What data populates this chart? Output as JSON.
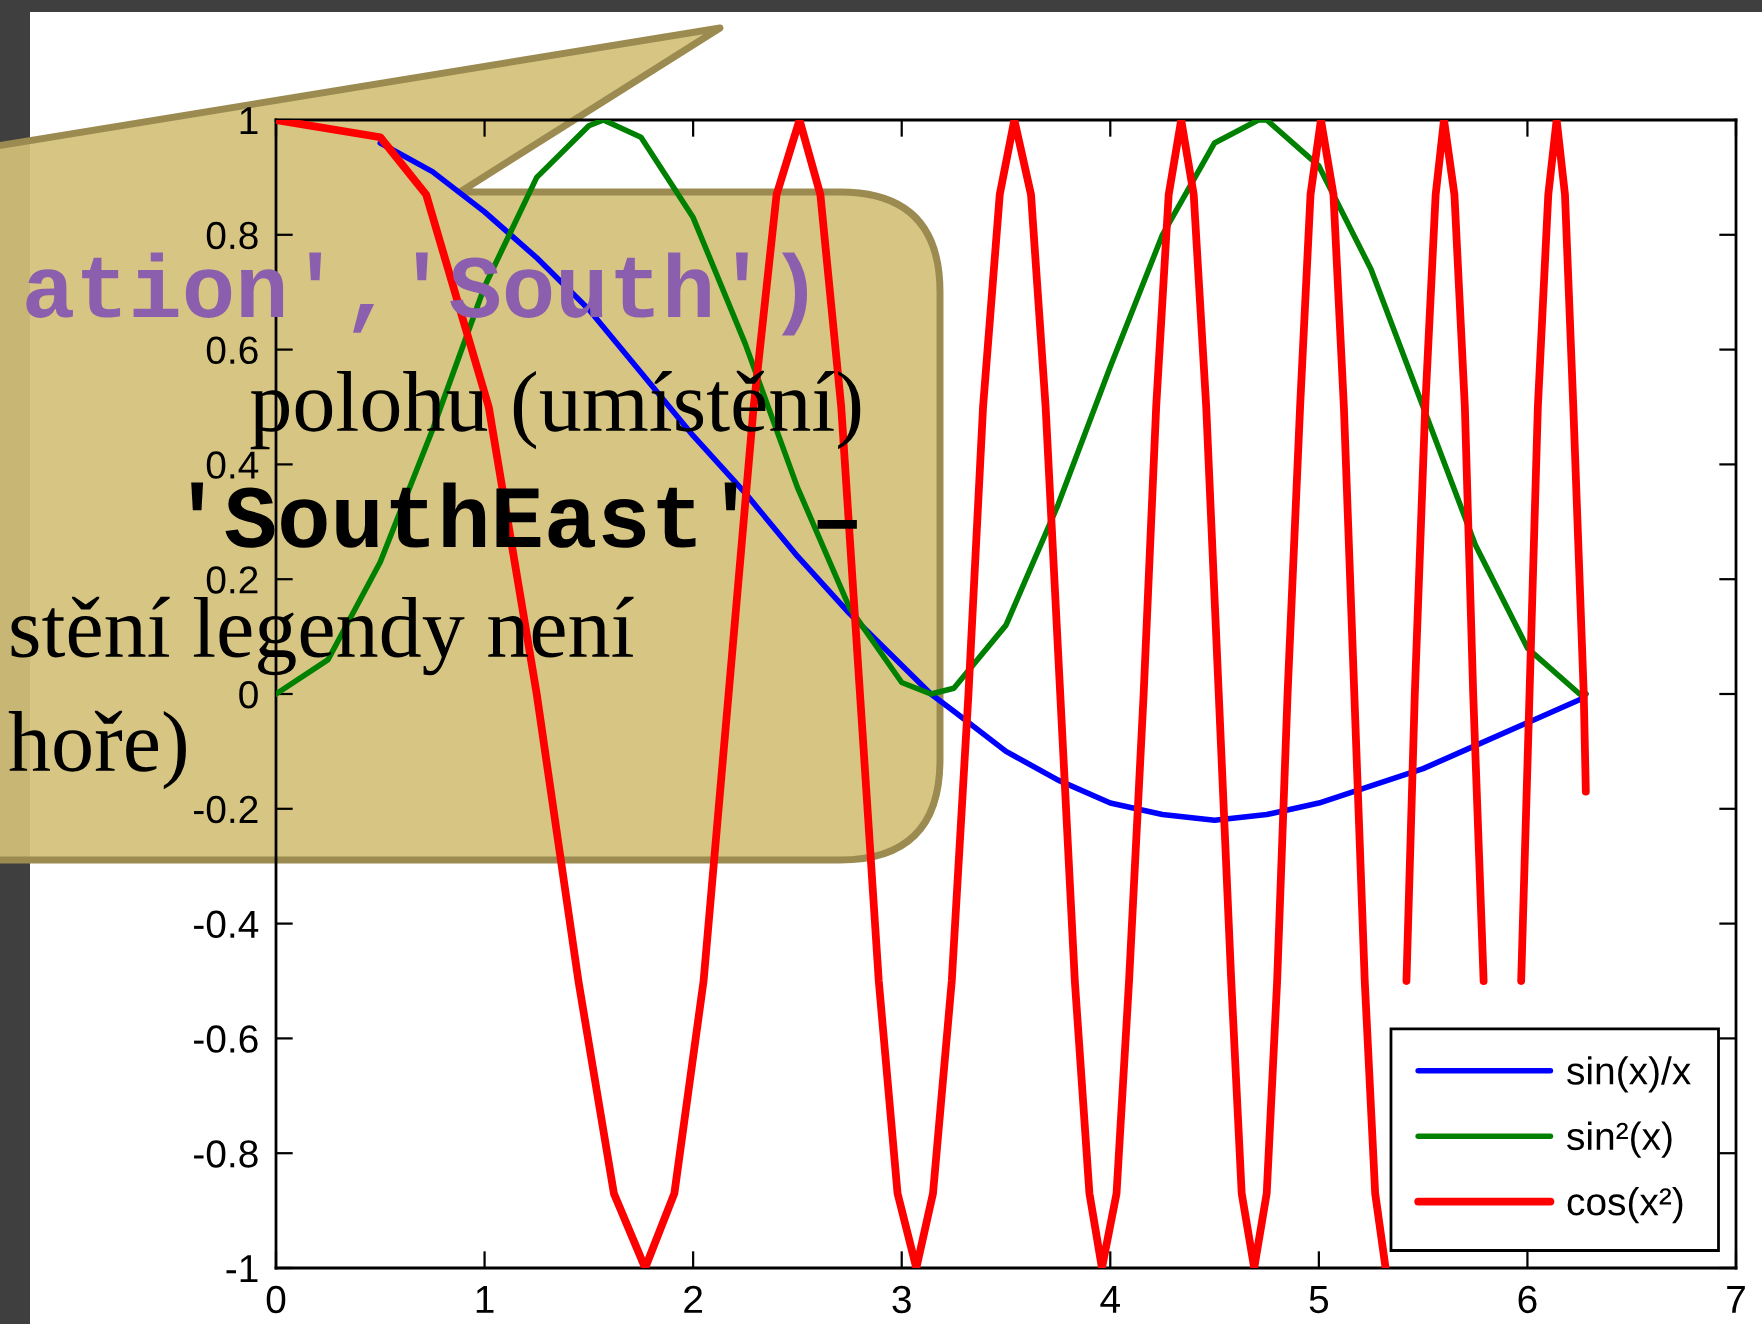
{
  "chart_data": {
    "type": "line",
    "xlim": [
      0,
      7
    ],
    "xticks": [
      0,
      1,
      2,
      3,
      4,
      5,
      6,
      7
    ],
    "ylim": [
      -1,
      1
    ],
    "yticks": [
      -1,
      -0.8,
      -0.6,
      -0.4,
      -0.2,
      0,
      0.2,
      0.4,
      0.6,
      0.8,
      1
    ],
    "legend": "bottom right",
    "series": [
      {
        "name": "sin(x)/x",
        "color": "#0000ff",
        "x": [
          0.5,
          0.75,
          1,
          1.25,
          1.5,
          1.75,
          2,
          2.25,
          2.5,
          2.75,
          3,
          3.14,
          3.25,
          3.5,
          3.75,
          4,
          4.25,
          4.5,
          4.75,
          5,
          5.25,
          5.5,
          5.75,
          6,
          6.25,
          6.28
        ],
        "values": [
          0.96,
          0.91,
          0.84,
          0.76,
          0.67,
          0.56,
          0.45,
          0.35,
          0.24,
          0.14,
          0.05,
          0,
          -0.03,
          -0.1,
          -0.15,
          -0.19,
          -0.21,
          -0.22,
          -0.21,
          -0.19,
          -0.16,
          -0.13,
          -0.09,
          -0.05,
          -0.01,
          0
        ]
      },
      {
        "name": "sin²(x)",
        "color": "#008000",
        "x": [
          0,
          0.25,
          0.5,
          0.75,
          1,
          1.25,
          1.5,
          1.57,
          1.75,
          2,
          2.25,
          2.5,
          2.75,
          3,
          3.14,
          3.25,
          3.5,
          3.75,
          4,
          4.25,
          4.5,
          4.71,
          4.75,
          5,
          5.25,
          5.5,
          5.75,
          6,
          6.25,
          6.28
        ],
        "values": [
          0,
          0.06,
          0.23,
          0.46,
          0.71,
          0.9,
          0.99,
          1,
          0.97,
          0.83,
          0.61,
          0.36,
          0.15,
          0.02,
          0,
          0.01,
          0.12,
          0.33,
          0.57,
          0.8,
          0.96,
          1,
          1,
          0.92,
          0.74,
          0.5,
          0.26,
          0.08,
          0,
          0
        ]
      },
      {
        "name": "cos(x²)",
        "color": "#ff0000",
        "x": [
          0,
          0.5,
          0.72,
          1.02,
          1.25,
          1.45,
          1.62,
          1.77,
          1.91,
          2.05,
          2.17,
          2.29,
          2.4,
          2.51,
          2.61,
          2.71,
          2.8,
          2.89,
          2.98,
          3.07,
          3.15,
          3.24,
          3.32,
          3.39,
          3.47,
          3.54,
          3.62,
          3.69,
          3.76,
          3.83,
          3.9,
          3.96,
          4.03,
          4.09,
          4.16,
          4.22,
          4.28,
          4.34,
          4.4,
          4.46,
          4.52,
          4.58,
          4.63,
          4.69,
          4.75,
          4.8,
          4.85,
          4.91,
          4.96,
          5.01,
          5.07,
          5.12,
          5.17,
          5.22,
          5.27,
          5.32,
          5.37,
          5.42,
          5.46,
          5.51,
          5.56,
          5.6,
          5.65,
          5.7,
          5.74,
          5.79,
          5.83,
          5.88,
          5.92,
          5.97,
          6.01,
          6.05,
          6.1,
          6.14,
          6.18,
          6.22,
          6.27,
          6.28
        ],
        "values": [
          1,
          0.97,
          0.87,
          0.5,
          0,
          -0.5,
          -0.87,
          -1,
          -0.87,
          -0.5,
          0,
          0.5,
          0.87,
          1,
          0.87,
          0.5,
          0,
          -0.5,
          -0.87,
          -1,
          -0.87,
          -0.5,
          0,
          0.5,
          0.87,
          1,
          0.87,
          0.5,
          0,
          -0.5,
          -0.87,
          -1,
          -0.87,
          -0.5,
          0,
          0.5,
          0.87,
          1,
          0.87,
          0.5,
          0,
          -0.5,
          -0.87,
          -1,
          -0.87,
          -0.5,
          0,
          0.5,
          0.87,
          1,
          0.87,
          0.5,
          0,
          -0.5,
          -0.87,
          -1,
          null,
          -0.5,
          0,
          0.5,
          0.87,
          1,
          0.87,
          0.5,
          0,
          -0.5,
          null,
          null,
          null,
          -0.5,
          0,
          0.5,
          0.87,
          1,
          0.87,
          0.5,
          0,
          -0.17
        ]
      }
    ],
    "annotations": [
      "ation','South')",
      "polohu (umístění)",
      "'SouthEast' –",
      "stění legendy není",
      "hoře)"
    ]
  }
}
